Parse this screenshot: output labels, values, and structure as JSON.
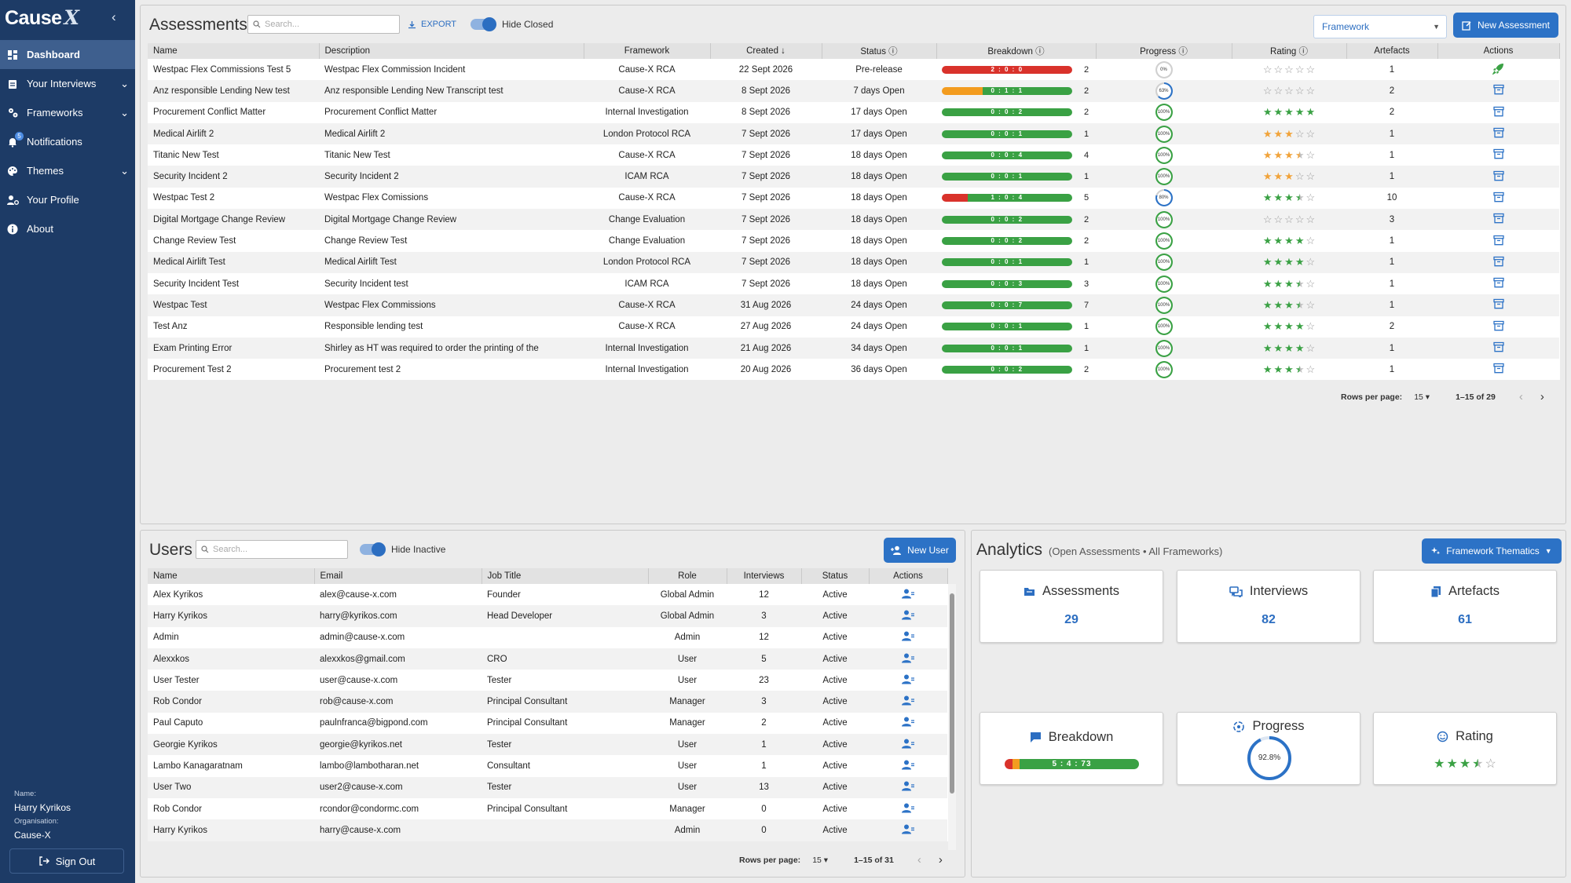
{
  "app": {
    "logo_a": "Cause",
    "logo_b": "X",
    "collapse_icon": "chevron-left-icon"
  },
  "nav": [
    {
      "label": "Dashboard",
      "icon": "dashboard-icon",
      "active": true,
      "chev": false
    },
    {
      "label": "Your Interviews",
      "icon": "clipboard-icon",
      "active": false,
      "chev": true
    },
    {
      "label": "Frameworks",
      "icon": "cog-icon",
      "active": false,
      "chev": true
    },
    {
      "label": "Notifications",
      "icon": "bell-icon",
      "active": false,
      "chev": false,
      "badge": "5"
    },
    {
      "label": "Themes",
      "icon": "palette-icon",
      "active": false,
      "chev": true
    },
    {
      "label": "Your Profile",
      "icon": "user-cog-icon",
      "active": false,
      "chev": false
    },
    {
      "label": "About",
      "icon": "info-icon",
      "active": false,
      "chev": false
    }
  ],
  "user": {
    "name_label": "Name:",
    "name": "Harry Kyrikos",
    "org_label": "Organisation:",
    "org": "Cause-X",
    "signout": "Sign Out"
  },
  "assessments": {
    "title": "Assessments",
    "search_placeholder": "Search...",
    "export": "EXPORT",
    "toggle": "Hide Closed",
    "framework_select": "Framework",
    "new_button": "New Assessment",
    "columns": [
      "Name",
      "Description",
      "Framework",
      "Created",
      "Status",
      "Breakdown",
      "Progress",
      "Rating",
      "Artefacts",
      "Actions"
    ],
    "rows": [
      {
        "name": "Westpac Flex Commissions Test 5",
        "desc": "Westpac Flex Commission Incident",
        "fw": "Cause-X RCA",
        "created": "22 Sept 2026",
        "status": "Pre-release",
        "bd": [
          2,
          0,
          0
        ],
        "bdl": "2 : 0 : 0",
        "count": "2",
        "prog": 0,
        "progl": "0%",
        "rating": 0,
        "art": "1",
        "action": "rocket"
      },
      {
        "name": "Anz responsible Lending New test",
        "desc": "Anz responsible Lending New Transcript test",
        "fw": "Cause-X RCA",
        "created": "8 Sept 2026",
        "status": "7 days Open",
        "bd": [
          0,
          1,
          1
        ],
        "bdl": "0 : 1 : 1",
        "count": "2",
        "prog": 63,
        "progl": "63%",
        "rating": 0,
        "art": "2",
        "action": "archive"
      },
      {
        "name": "Procurement Conflict Matter",
        "desc": "Procurement Conflict Matter",
        "fw": "Internal Investigation",
        "created": "8 Sept 2026",
        "status": "17 days Open",
        "bd": [
          0,
          0,
          2
        ],
        "bdl": "0 : 0 : 2",
        "count": "2",
        "prog": 100,
        "progl": "100%",
        "rating": 5,
        "art": "2",
        "action": "archive"
      },
      {
        "name": "Medical Airlift 2",
        "desc": "Medical Airlift 2",
        "fw": "London Protocol RCA",
        "created": "7 Sept 2026",
        "status": "17 days Open",
        "bd": [
          0,
          0,
          1
        ],
        "bdl": "0 : 0 : 1",
        "count": "1",
        "prog": 100,
        "progl": "100%",
        "rating": 3,
        "art": "1",
        "action": "archive",
        "orange": true
      },
      {
        "name": "Titanic New Test",
        "desc": "Titanic New Test",
        "fw": "Cause-X RCA",
        "created": "7 Sept 2026",
        "status": "18 days Open",
        "bd": [
          0,
          0,
          4
        ],
        "bdl": "0 : 0 : 4",
        "count": "4",
        "prog": 100,
        "progl": "100%",
        "rating": 3.5,
        "art": "1",
        "action": "archive",
        "orange": true
      },
      {
        "name": "Security Incident 2",
        "desc": "Security Incident 2",
        "fw": "ICAM RCA",
        "created": "7 Sept 2026",
        "status": "18 days Open",
        "bd": [
          0,
          0,
          1
        ],
        "bdl": "0 : 0 : 1",
        "count": "1",
        "prog": 100,
        "progl": "100%",
        "rating": 3,
        "art": "1",
        "action": "archive",
        "orange": true
      },
      {
        "name": "Westpac Test 2",
        "desc": "Westpac Flex Comissions",
        "fw": "Cause-X RCA",
        "created": "7 Sept 2026",
        "status": "18 days Open",
        "bd": [
          1,
          0,
          4
        ],
        "bdl": "1 : 0 : 4",
        "count": "5",
        "prog": 80,
        "progl": "80%",
        "rating": 3.5,
        "art": "10",
        "action": "archive"
      },
      {
        "name": "Digital Mortgage Change Review",
        "desc": "Digital Mortgage Change Review",
        "fw": "Change Evaluation",
        "created": "7 Sept 2026",
        "status": "18 days Open",
        "bd": [
          0,
          0,
          2
        ],
        "bdl": "0 : 0 : 2",
        "count": "2",
        "prog": 100,
        "progl": "100%",
        "rating": 0,
        "art": "3",
        "action": "archive"
      },
      {
        "name": "Change Review Test",
        "desc": "Change Review Test",
        "fw": "Change Evaluation",
        "created": "7 Sept 2026",
        "status": "18 days Open",
        "bd": [
          0,
          0,
          2
        ],
        "bdl": "0 : 0 : 2",
        "count": "2",
        "prog": 100,
        "progl": "100%",
        "rating": 4,
        "art": "1",
        "action": "archive"
      },
      {
        "name": "Medical Airlift Test",
        "desc": "Medical Airlift Test",
        "fw": "London Protocol RCA",
        "created": "7 Sept 2026",
        "status": "18 days Open",
        "bd": [
          0,
          0,
          1
        ],
        "bdl": "0 : 0 : 1",
        "count": "1",
        "prog": 100,
        "progl": "100%",
        "rating": 4,
        "art": "1",
        "action": "archive"
      },
      {
        "name": "Security Incident Test",
        "desc": "Security Incident test",
        "fw": "ICAM RCA",
        "created": "7 Sept 2026",
        "status": "18 days Open",
        "bd": [
          0,
          0,
          3
        ],
        "bdl": "0 : 0 : 3",
        "count": "3",
        "prog": 100,
        "progl": "100%",
        "rating": 3.5,
        "art": "1",
        "action": "archive"
      },
      {
        "name": "Westpac Test",
        "desc": "Westpac Flex Commissions",
        "fw": "Cause-X RCA",
        "created": "31 Aug 2026",
        "status": "24 days Open",
        "bd": [
          0,
          0,
          7
        ],
        "bdl": "0 : 0 : 7",
        "count": "7",
        "prog": 100,
        "progl": "100%",
        "rating": 3.5,
        "art": "1",
        "action": "archive"
      },
      {
        "name": "Test Anz",
        "desc": "Responsible lending test",
        "fw": "Cause-X RCA",
        "created": "27 Aug 2026",
        "status": "24 days Open",
        "bd": [
          0,
          0,
          1
        ],
        "bdl": "0 : 0 : 1",
        "count": "1",
        "prog": 100,
        "progl": "100%",
        "rating": 4,
        "art": "2",
        "action": "archive"
      },
      {
        "name": "Exam Printing Error",
        "desc": "Shirley as HT was required to order the printing of the",
        "fw": "Internal Investigation",
        "created": "21 Aug 2026",
        "status": "34 days Open",
        "bd": [
          0,
          0,
          1
        ],
        "bdl": "0 : 0 : 1",
        "count": "1",
        "prog": 100,
        "progl": "100%",
        "rating": 4,
        "art": "1",
        "action": "archive"
      },
      {
        "name": "Procurement Test 2",
        "desc": "Procurement test 2",
        "fw": "Internal Investigation",
        "created": "20 Aug 2026",
        "status": "36 days Open",
        "bd": [
          0,
          0,
          2
        ],
        "bdl": "0 : 0 : 2",
        "count": "2",
        "prog": 100,
        "progl": "100%",
        "rating": 3.5,
        "art": "1",
        "action": "archive"
      }
    ],
    "rows_per_page_label": "Rows per page:",
    "rows_per_page": "15",
    "range": "1–15 of 29"
  },
  "users": {
    "title": "Users",
    "search_placeholder": "Search...",
    "toggle": "Hide Inactive",
    "new_button": "New User",
    "columns": [
      "Name",
      "Email",
      "Job Title",
      "Role",
      "Interviews",
      "Status",
      "Actions"
    ],
    "rows": [
      {
        "name": "Alex Kyrikos",
        "email": "alex@cause-x.com",
        "job": "Founder",
        "role": "Global Admin",
        "iv": "12",
        "status": "Active"
      },
      {
        "name": "Harry Kyrikos",
        "email": "harry@kyrikos.com",
        "job": "Head Developer",
        "role": "Global Admin",
        "iv": "3",
        "status": "Active"
      },
      {
        "name": "Admin",
        "email": "admin@cause-x.com",
        "job": "",
        "role": "Admin",
        "iv": "12",
        "status": "Active"
      },
      {
        "name": "Alexxkos",
        "email": "alexxkos@gmail.com",
        "job": "CRO",
        "role": "User",
        "iv": "5",
        "status": "Active"
      },
      {
        "name": "User Tester",
        "email": "user@cause-x.com",
        "job": "Tester",
        "role": "User",
        "iv": "23",
        "status": "Active"
      },
      {
        "name": "Rob Condor",
        "email": "rob@cause-x.com",
        "job": "Principal Consultant",
        "role": "Manager",
        "iv": "3",
        "status": "Active"
      },
      {
        "name": "Paul Caputo",
        "email": "paulnfranca@bigpond.com",
        "job": "Principal Consultant",
        "role": "Manager",
        "iv": "2",
        "status": "Active"
      },
      {
        "name": "Georgie Kyrikos",
        "email": "georgie@kyrikos.net",
        "job": "Tester",
        "role": "User",
        "iv": "1",
        "status": "Active"
      },
      {
        "name": "Lambo Kanagaratnam",
        "email": "lambo@lambotharan.net",
        "job": "Consultant",
        "role": "User",
        "iv": "1",
        "status": "Active"
      },
      {
        "name": "User Two",
        "email": "user2@cause-x.com",
        "job": "Tester",
        "role": "User",
        "iv": "13",
        "status": "Active"
      },
      {
        "name": "Rob Condor",
        "email": "rcondor@condormc.com",
        "job": "Principal Consultant",
        "role": "Manager",
        "iv": "0",
        "status": "Active"
      },
      {
        "name": "Harry Kyrikos",
        "email": "harry@cause-x.com",
        "job": "",
        "role": "Admin",
        "iv": "0",
        "status": "Active"
      }
    ],
    "rows_per_page_label": "Rows per page:",
    "rows_per_page": "15",
    "range": "1–15 of 31"
  },
  "analytics": {
    "title": "Analytics",
    "subtitle": "(Open Assessments • All Frameworks)",
    "dropdown": "Framework Thematics",
    "assessments_label": "Assessments",
    "assessments_value": "29",
    "interviews_label": "Interviews",
    "interviews_value": "82",
    "artefacts_label": "Artefacts",
    "artefacts_value": "61",
    "breakdown_label": "Breakdown",
    "breakdown_value": "5 : 4 : 73",
    "breakdown_parts": [
      5,
      4,
      73
    ],
    "progress_label": "Progress",
    "progress_value": "92.8%",
    "progress_fraction": 0.928,
    "rating_label": "Rating",
    "rating_stars": 3.5
  },
  "colors": {
    "accent": "#2c72c6",
    "red": "#d9322b",
    "orange": "#f39c1f",
    "green": "#3aa144",
    "gold": "#f1a33a",
    "star_green": "#3aa144",
    "sidebar": "#1d3b66"
  }
}
